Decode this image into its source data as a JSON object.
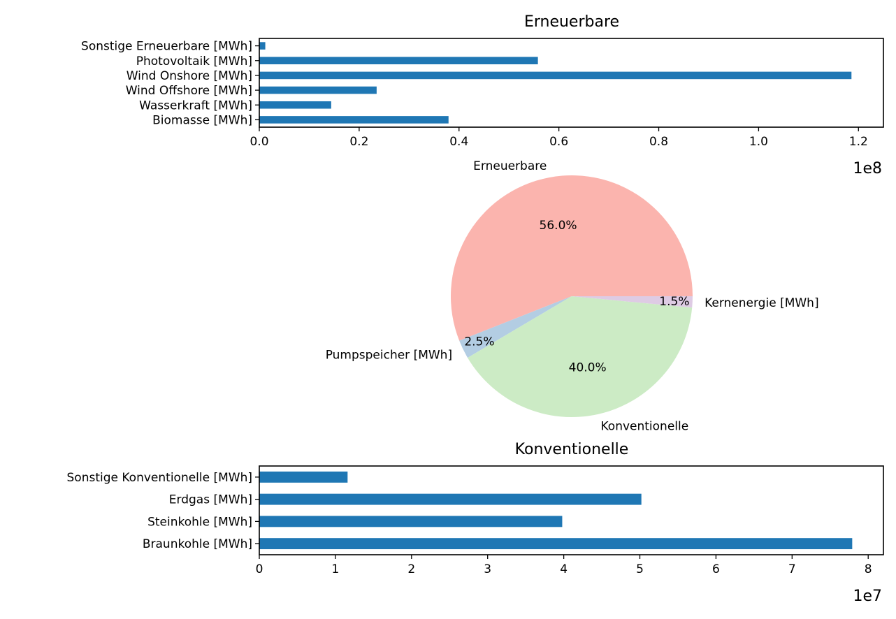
{
  "colors": {
    "bar": "#1f77b4",
    "pie": [
      "#fbb4ae",
      "#b3cde3",
      "#ccebc5",
      "#decbe4"
    ]
  },
  "chart_data": [
    {
      "type": "bar",
      "orientation": "horizontal",
      "title": "Erneuerbare",
      "categories": [
        "Sonstige Erneuerbare [MWh]",
        "Photovoltaik [MWh]",
        "Wind Onshore [MWh]",
        "Wind Offshore [MWh]",
        "Wasserkraft [MWh]",
        "Biomasse [MWh]"
      ],
      "values": [
        1200000,
        55800000,
        118600000,
        23500000,
        14400000,
        37900000
      ],
      "xlim": [
        0,
        125000000
      ],
      "xticks": [
        0,
        20000000,
        40000000,
        60000000,
        80000000,
        100000000,
        120000000
      ],
      "xtick_labels": [
        "0.0",
        "0.2",
        "0.4",
        "0.6",
        "0.8",
        "1.0",
        "1.2"
      ],
      "offset_text": "1e8"
    },
    {
      "type": "pie",
      "labels": [
        "Erneuerbare",
        "Pumpspeicher [MWh]",
        "Konventionelle",
        "Kernenergie [MWh]"
      ],
      "values": [
        56.0,
        2.5,
        40.0,
        1.5
      ],
      "pct_labels": [
        "56.0%",
        "2.5%",
        "40.0%",
        "1.5%"
      ]
    },
    {
      "type": "bar",
      "orientation": "horizontal",
      "title": "Konventionelle",
      "categories": [
        "Sonstige Konventionelle [MWh]",
        "Erdgas [MWh]",
        "Steinkohle [MWh]",
        "Braunkohle [MWh]"
      ],
      "values": [
        11600000,
        50200000,
        39800000,
        77900000
      ],
      "xlim": [
        0,
        82000000
      ],
      "xticks": [
        0,
        10000000,
        20000000,
        30000000,
        40000000,
        50000000,
        60000000,
        70000000,
        80000000
      ],
      "xtick_labels": [
        "0",
        "1",
        "2",
        "3",
        "4",
        "5",
        "6",
        "7",
        "8"
      ],
      "offset_text": "1e7"
    }
  ]
}
